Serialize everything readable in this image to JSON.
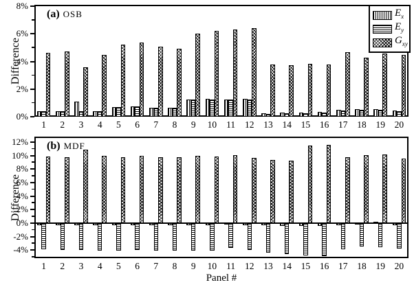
{
  "figure": {
    "y_axis_label": "Difference",
    "x_axis_label": "Panel #"
  },
  "legend": {
    "position": "top-right",
    "items": [
      {
        "main": "E",
        "sub": "x",
        "pattern": "vertical-hatch"
      },
      {
        "main": "E",
        "sub": "y",
        "pattern": "horizontal-hatch"
      },
      {
        "main": "G",
        "sub": "xy",
        "pattern": "crosshatch"
      }
    ]
  },
  "chart_data": [
    {
      "type": "bar",
      "panel_tag": "(a)",
      "panel_name": "OSB",
      "ylabel": "Difference",
      "ylim": [
        0,
        8.1
      ],
      "yticks_major": [
        0,
        2,
        4,
        6,
        8
      ],
      "yticks_minor": [
        1,
        3,
        5,
        7
      ],
      "grid": false,
      "categories": [
        "1",
        "2",
        "3",
        "4",
        "5",
        "6",
        "7",
        "8",
        "9",
        "10",
        "11",
        "12",
        "13",
        "14",
        "15",
        "16",
        "17",
        "18",
        "19",
        "20"
      ],
      "series": [
        {
          "name": "Ex",
          "pattern": "vertical-hatch",
          "values": [
            0.4,
            0.4,
            1.1,
            0.4,
            0.7,
            0.75,
            0.65,
            0.65,
            1.25,
            1.3,
            1.25,
            1.3,
            0.25,
            0.3,
            0.3,
            0.35,
            0.5,
            0.55,
            0.55,
            0.45
          ]
        },
        {
          "name": "Ey",
          "pattern": "horizontal-hatch",
          "values": [
            0.4,
            0.4,
            0.4,
            0.4,
            0.7,
            0.75,
            0.65,
            0.65,
            1.25,
            1.25,
            1.25,
            1.25,
            0.2,
            0.25,
            0.25,
            0.3,
            0.45,
            0.5,
            0.5,
            0.4
          ]
        },
        {
          "name": "Gxy",
          "pattern": "crosshatch",
          "values": [
            4.6,
            4.7,
            3.6,
            4.45,
            5.2,
            5.35,
            5.05,
            4.9,
            6.0,
            6.2,
            6.3,
            6.4,
            3.8,
            3.75,
            3.85,
            3.8,
            4.65,
            4.25,
            4.55,
            4.45
          ]
        }
      ]
    },
    {
      "type": "bar",
      "panel_tag": "(b)",
      "panel_name": "MDF",
      "ylabel": "Difference",
      "ylim": [
        -5.2,
        12.8
      ],
      "yticks_major": [
        -4,
        -2,
        0,
        2,
        4,
        6,
        8,
        10,
        12
      ],
      "yticks_minor": [
        -5,
        -3,
        -1,
        1,
        3,
        5,
        7,
        9,
        11
      ],
      "grid": false,
      "categories": [
        "1",
        "2",
        "3",
        "4",
        "5",
        "6",
        "7",
        "8",
        "9",
        "10",
        "11",
        "12",
        "13",
        "14",
        "15",
        "16",
        "17",
        "18",
        "19",
        "20"
      ],
      "series": [
        {
          "name": "Ex",
          "pattern": "vertical-hatch",
          "values": [
            -0.3,
            -0.3,
            -0.35,
            -0.3,
            -0.3,
            -0.3,
            -0.3,
            -0.3,
            -0.3,
            -0.3,
            -0.25,
            -0.3,
            -0.35,
            -0.4,
            -0.4,
            -0.45,
            -0.3,
            -0.25,
            0.2,
            -0.3
          ]
        },
        {
          "name": "Ey",
          "pattern": "horizontal-hatch",
          "values": [
            -3.85,
            -4.0,
            -4.0,
            -4.05,
            -4.1,
            -4.0,
            -4.05,
            -4.05,
            -4.1,
            -4.05,
            -3.7,
            -4.0,
            -4.4,
            -4.55,
            -4.8,
            -4.9,
            -3.85,
            -3.5,
            -3.6,
            -3.8
          ]
        },
        {
          "name": "Gxy",
          "pattern": "crosshatch",
          "values": [
            9.9,
            9.8,
            10.9,
            9.95,
            9.8,
            10.0,
            9.75,
            9.75,
            9.95,
            9.9,
            10.1,
            9.65,
            9.3,
            9.2,
            11.45,
            11.6,
            9.8,
            10.1,
            10.2,
            9.55
          ]
        }
      ]
    }
  ]
}
